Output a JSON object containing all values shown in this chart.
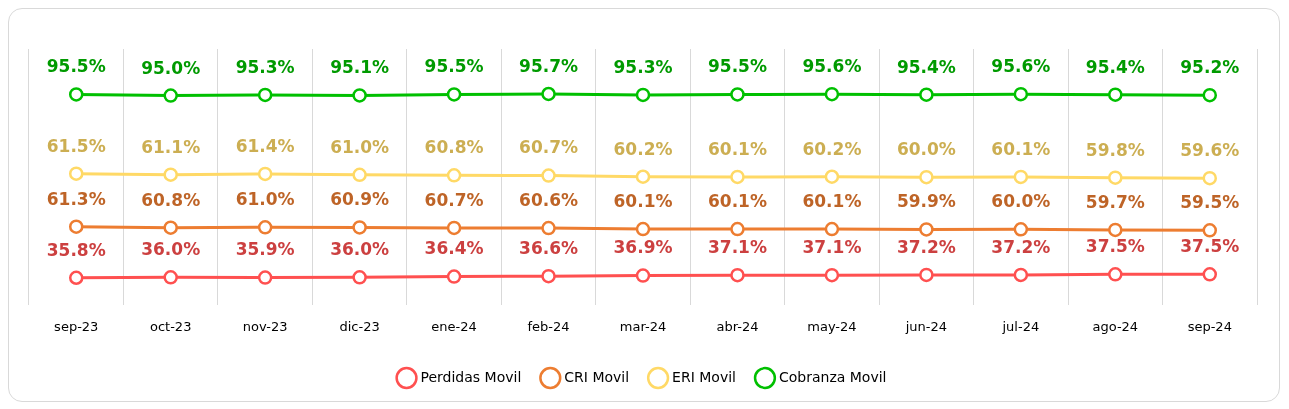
{
  "chart_data": {
    "type": "line",
    "categories": [
      "sep-23",
      "oct-23",
      "nov-23",
      "dic-23",
      "ene-24",
      "feb-24",
      "mar-24",
      "abr-24",
      "may-24",
      "jun-24",
      "jul-24",
      "ago-24",
      "sep-24"
    ],
    "series": [
      {
        "name": "Perdidas Movil",
        "color": "#ff5050",
        "values": [
          35.8,
          36.0,
          35.9,
          36.0,
          36.4,
          36.6,
          36.9,
          37.1,
          37.1,
          37.2,
          37.2,
          37.5,
          37.5
        ],
        "value_labels": [
          "35.8%",
          "36.0%",
          "35.9%",
          "36.0%",
          "36.4%",
          "36.6%",
          "36.9%",
          "37.1%",
          "37.1%",
          "37.2%",
          "37.2%",
          "37.5%",
          "37.5%"
        ]
      },
      {
        "name": "CRI Movil",
        "color": "#ed7d31",
        "values": [
          61.3,
          60.8,
          61.0,
          60.9,
          60.7,
          60.6,
          60.1,
          60.1,
          60.1,
          59.9,
          60.0,
          59.7,
          59.5
        ],
        "value_labels": [
          "61.3%",
          "60.8%",
          "61.0%",
          "60.9%",
          "60.7%",
          "60.6%",
          "60.1%",
          "60.1%",
          "60.1%",
          "59.9%",
          "60.0%",
          "59.7%",
          "59.5%"
        ]
      },
      {
        "name": "ERI Movil",
        "color": "#ffd966",
        "axis": "y2",
        "values": [
          61.5,
          61.1,
          61.4,
          61.0,
          60.8,
          60.7,
          60.2,
          60.1,
          60.2,
          60.0,
          60.1,
          59.8,
          59.6
        ],
        "value_labels": [
          "61.5%",
          "61.1%",
          "61.4%",
          "61.0%",
          "60.8%",
          "60.7%",
          "60.2%",
          "60.1%",
          "60.2%",
          "60.0%",
          "60.1%",
          "59.8%",
          "59.6%"
        ]
      },
      {
        "name": "Cobranza Movil",
        "color": "#00c000",
        "axis": "y2",
        "values": [
          95.5,
          95.0,
          95.3,
          95.1,
          95.5,
          95.7,
          95.3,
          95.5,
          95.6,
          95.4,
          95.6,
          95.4,
          95.2
        ],
        "value_labels": [
          "95.5%",
          "95.0%",
          "95.3%",
          "95.1%",
          "95.5%",
          "95.7%",
          "95.3%",
          "95.5%",
          "95.6%",
          "95.4%",
          "95.6%",
          "95.4%",
          "95.2%"
        ]
      }
    ],
    "ylim": [
      22,
      150
    ],
    "y2lim": [
      5,
      115
    ],
    "tick_labels": "x",
    "grid": "x",
    "legend": "bottom",
    "marker": "circle",
    "line_style": "solid"
  }
}
